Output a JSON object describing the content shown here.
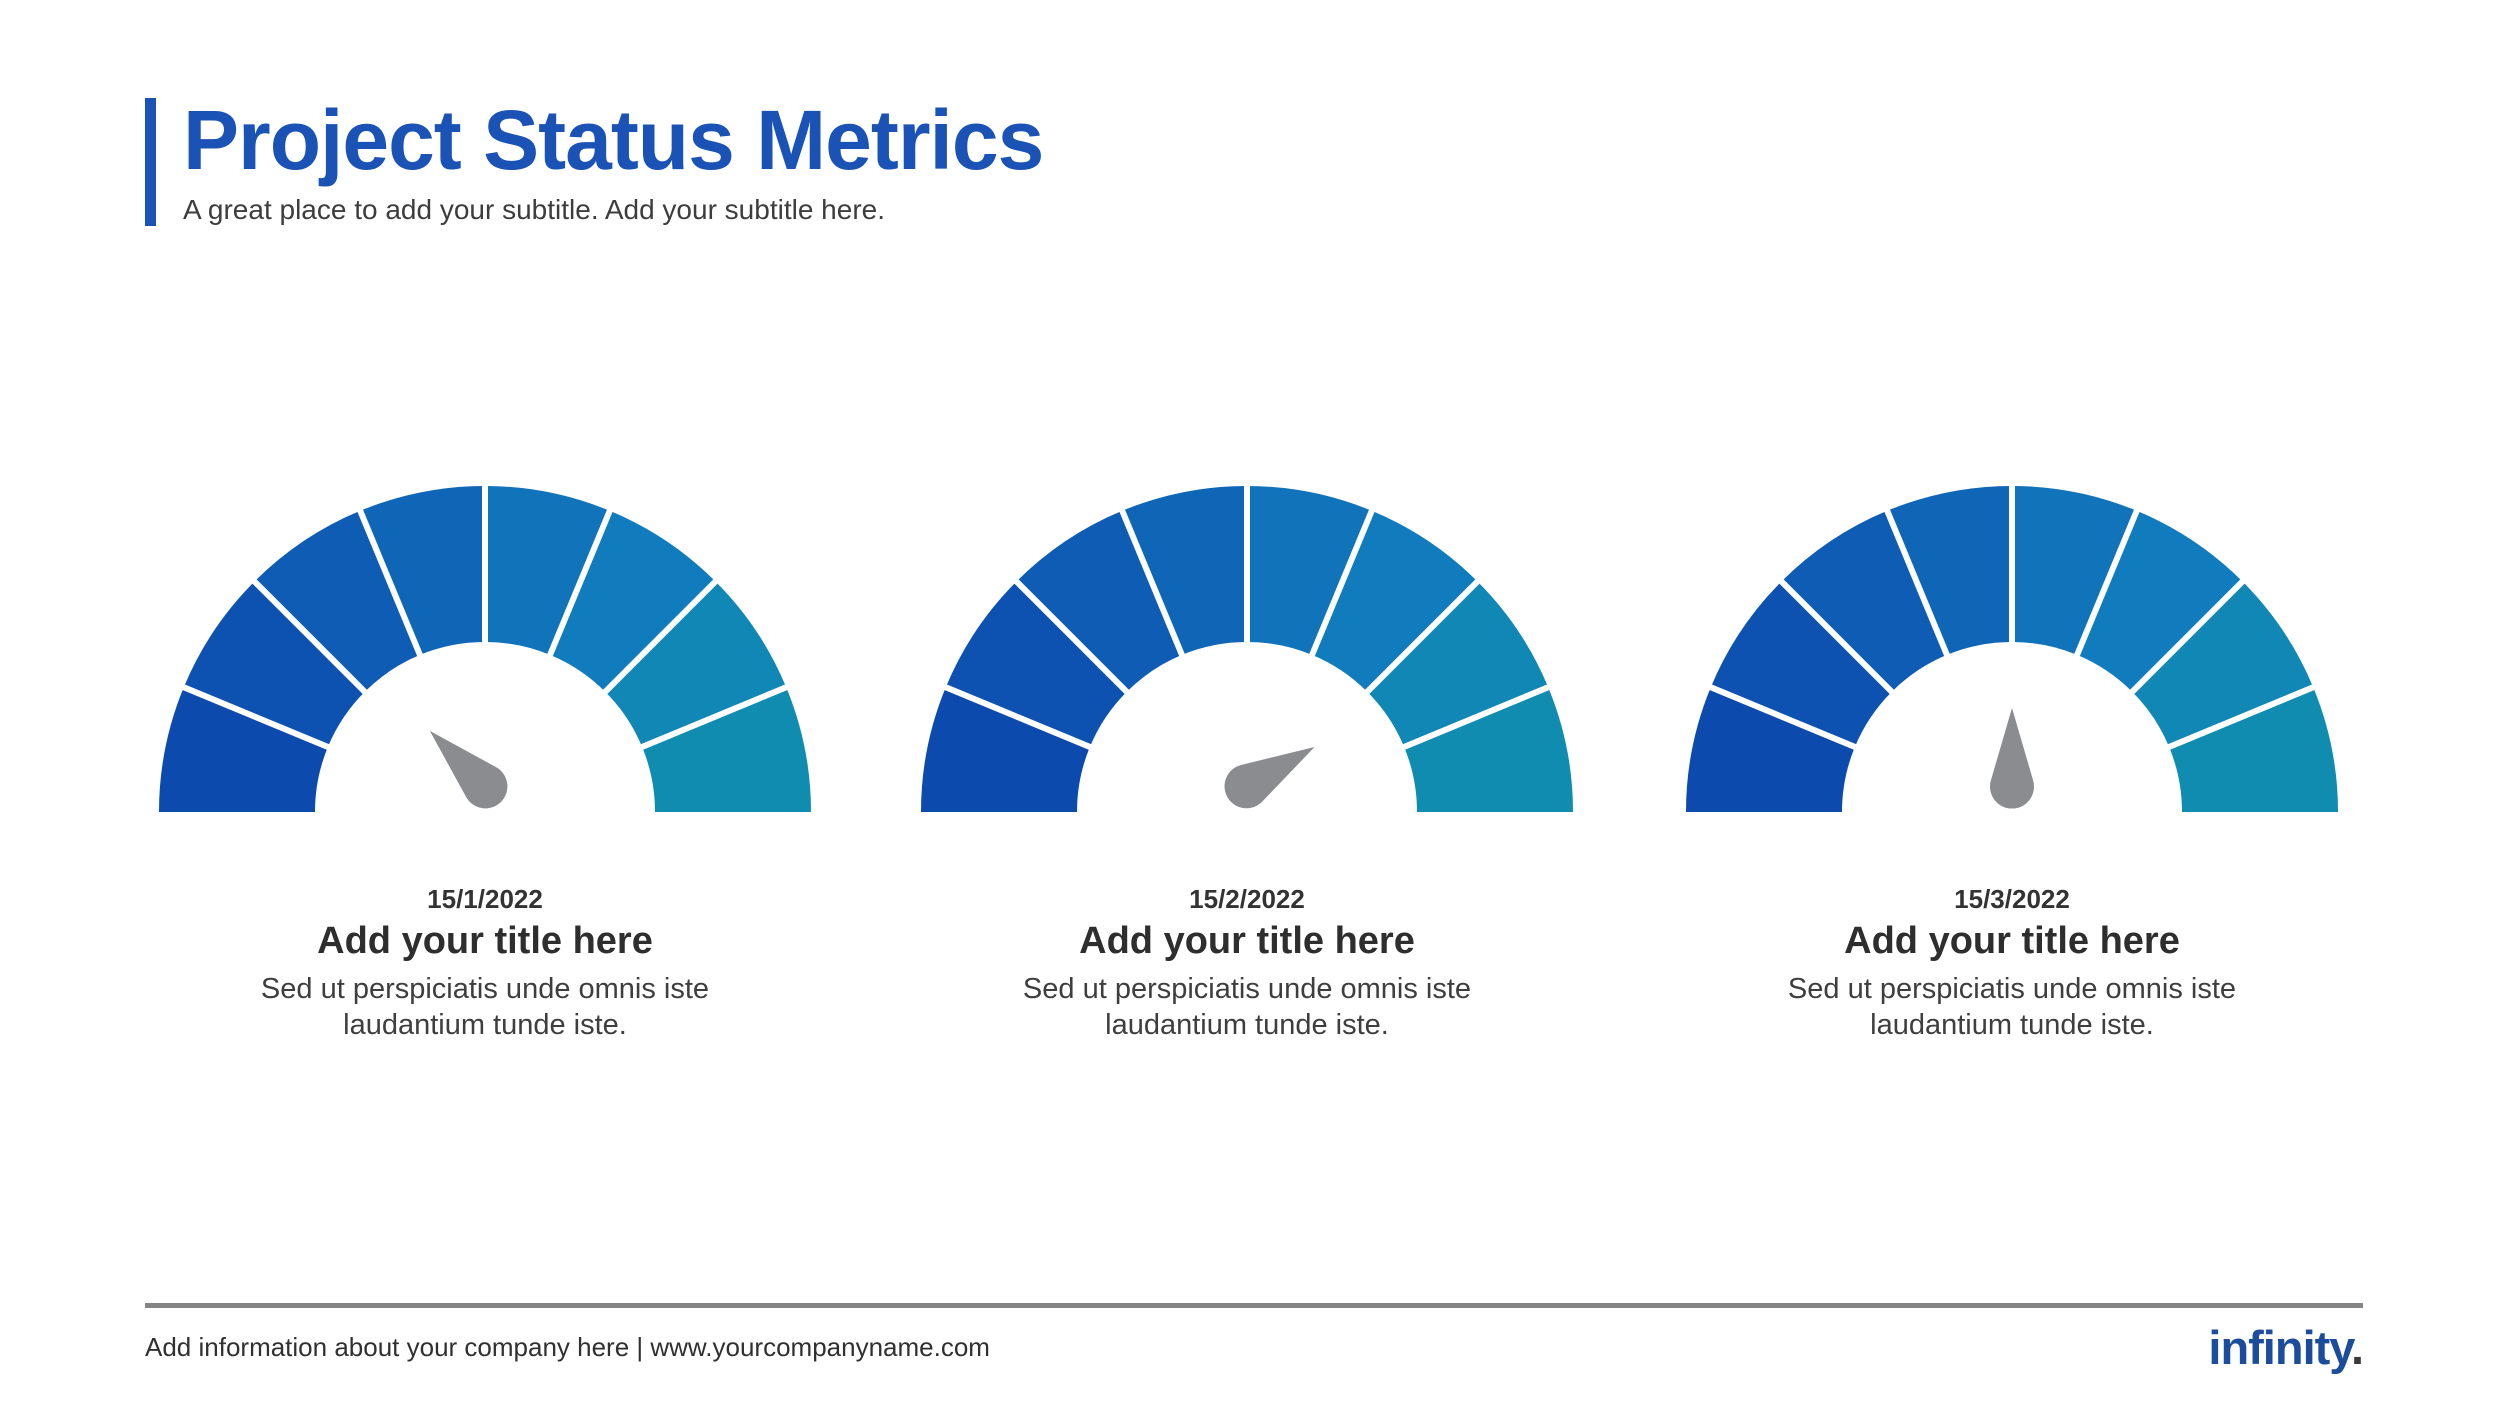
{
  "header": {
    "title": "Project Status Metrics",
    "subtitle": "A great place to add your subtitle. Add your subtitle here."
  },
  "gauges": [
    {
      "date": "15/1/2022",
      "title": "Add your title here",
      "description": "Sed ut perspiciatis unde omnis iste laudantium tunde iste.",
      "needle_angle": -45
    },
    {
      "date": "15/2/2022",
      "title": "Add your title here",
      "description": "Sed ut perspiciatis unde omnis iste laudantium tunde iste.",
      "needle_angle": 60
    },
    {
      "date": "15/3/2022",
      "title": "Add your title here",
      "description": "Sed ut perspiciatis unde omnis iste laudantium tunde iste.",
      "needle_angle": 0
    }
  ],
  "gauge_style": {
    "segment_colors": [
      "#0c4aae",
      "#0d52b1",
      "#0e5cb4",
      "#0f66b7",
      "#1173ba",
      "#107cbd",
      "#1187b6",
      "#0f8cb0"
    ],
    "needle_color": "#8a8c8f",
    "divider_color": "#ffffff",
    "outer_radius": 326,
    "inner_radius": 170,
    "span_deg": 180
  },
  "footer": {
    "info": "Add information about your company here | www.yourcompanyname.com",
    "logo_text": "infinity",
    "logo_dot": "."
  },
  "colors": {
    "accent": "#1a52b5",
    "heading_text": "#1a52b5",
    "body_text": "#3e3e3e",
    "footer_line": "#848484",
    "logo_blue": "#1c4d9d",
    "logo_dot": "#3a3a3a"
  },
  "chart_data": [
    {
      "type": "gauge",
      "title": "Add your title here",
      "subtitle_date": "15/1/2022",
      "segments": 8,
      "span_deg": 180,
      "segment_colors": [
        "#0c4aae",
        "#0d52b1",
        "#0e5cb4",
        "#0f66b7",
        "#1173ba",
        "#107cbd",
        "#1187b6",
        "#0f8cb0"
      ],
      "needle_angle_from_vertical_deg": -45,
      "needle_value_fraction": 0.25
    },
    {
      "type": "gauge",
      "title": "Add your title here",
      "subtitle_date": "15/2/2022",
      "segments": 8,
      "span_deg": 180,
      "segment_colors": [
        "#0c4aae",
        "#0d52b1",
        "#0e5cb4",
        "#0f66b7",
        "#1173ba",
        "#107cbd",
        "#1187b6",
        "#0f8cb0"
      ],
      "needle_angle_from_vertical_deg": 60,
      "needle_value_fraction": 0.83
    },
    {
      "type": "gauge",
      "title": "Add your title here",
      "subtitle_date": "15/3/2022",
      "segments": 8,
      "span_deg": 180,
      "segment_colors": [
        "#0c4aae",
        "#0d52b1",
        "#0e5cb4",
        "#0f66b7",
        "#1173ba",
        "#107cbd",
        "#1187b6",
        "#0f8cb0"
      ],
      "needle_angle_from_vertical_deg": 0,
      "needle_value_fraction": 0.5
    }
  ]
}
